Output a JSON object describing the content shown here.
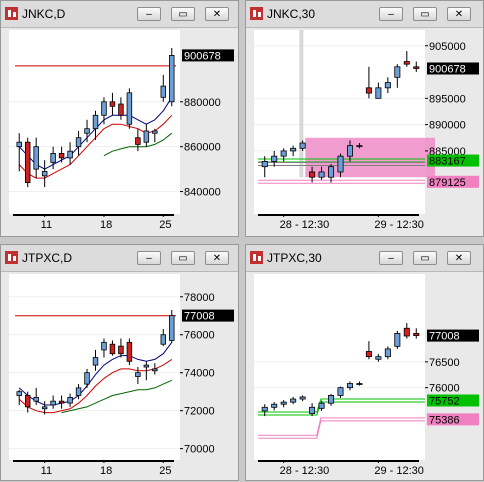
{
  "windows": [
    {
      "id": "jnkc-d",
      "title": "JNKC,D",
      "chart_data": {
        "type": "candlestick",
        "ylim": [
          830000,
          912000
        ],
        "y_ticks": [
          "900678",
          "880000",
          "860000",
          "840000"
        ],
        "y_tick_values": [
          900678,
          880000,
          860000,
          840000
        ],
        "last_price_label": "900678",
        "x_ticks": [
          "11",
          "18",
          "25"
        ],
        "x_tick_index": [
          3,
          10,
          17
        ],
        "candles": [
          {
            "o": 860000,
            "h": 866000,
            "l": 849000,
            "c": 862000
          },
          {
            "o": 862000,
            "h": 864000,
            "l": 842000,
            "c": 844000
          },
          {
            "o": 850000,
            "h": 864000,
            "l": 846000,
            "c": 860000
          },
          {
            "o": 847000,
            "h": 854000,
            "l": 842000,
            "c": 849000
          },
          {
            "o": 853000,
            "h": 860000,
            "l": 850000,
            "c": 857000
          },
          {
            "o": 857000,
            "h": 860000,
            "l": 853000,
            "c": 855000
          },
          {
            "o": 855000,
            "h": 862000,
            "l": 852000,
            "c": 858000
          },
          {
            "o": 860000,
            "h": 867000,
            "l": 856000,
            "c": 864000
          },
          {
            "o": 866000,
            "h": 872000,
            "l": 862000,
            "c": 868000
          },
          {
            "o": 868000,
            "h": 876000,
            "l": 863000,
            "c": 874000
          },
          {
            "o": 874000,
            "h": 882000,
            "l": 870000,
            "c": 880000
          },
          {
            "o": 880000,
            "h": 884000,
            "l": 874000,
            "c": 878000
          },
          {
            "o": 879000,
            "h": 882000,
            "l": 872000,
            "c": 874000
          },
          {
            "o": 870000,
            "h": 886000,
            "l": 868000,
            "c": 884000
          },
          {
            "o": 864000,
            "h": 868000,
            "l": 858000,
            "c": 861000
          },
          {
            "o": 862000,
            "h": 870000,
            "l": 860000,
            "c": 867000
          },
          {
            "o": 866000,
            "h": 868000,
            "l": 862000,
            "c": 867000
          },
          {
            "o": 882000,
            "h": 892000,
            "l": 880000,
            "c": 887000
          },
          {
            "o": 880000,
            "h": 904000,
            "l": 878000,
            "c": 900678
          }
        ],
        "series": [
          {
            "color": "#cc0000",
            "values": [
              null,
              null,
              null,
              null,
              null,
              null,
              null,
              null,
              null,
              null,
              null,
              null,
              null,
              null,
              null,
              null,
              null,
              null,
              null
            ],
            "flat": 896000
          },
          {
            "color": "#000080",
            "values": [
              860000,
              856000,
              852000,
              850000,
              852000,
              854000,
              856000,
              860000,
              864000,
              868000,
              872000,
              874000,
              874000,
              874000,
              872000,
              870000,
              872000,
              876000,
              882000
            ]
          },
          {
            "color": "#cc0000",
            "values": [
              852000,
              848000,
              846000,
              846000,
              848000,
              850000,
              852000,
              856000,
              860000,
              864000,
              868000,
              870000,
              870000,
              869000,
              868000,
              866000,
              867000,
              870000,
              874000
            ]
          },
          {
            "color": "#006400",
            "values": [
              null,
              null,
              null,
              null,
              null,
              null,
              null,
              null,
              null,
              null,
              856000,
              858000,
              859000,
              860000,
              860000,
              860000,
              861000,
              863000,
              866000
            ]
          }
        ]
      }
    },
    {
      "id": "jnkc-30",
      "title": "JNKC,30",
      "chart_data": {
        "type": "candlestick",
        "ylim": [
          873000,
          908000
        ],
        "y_ticks": [
          "905000",
          "900678",
          "895000",
          "890000",
          "885000",
          "883167",
          "879125"
        ],
        "y_tick_values": [
          905000,
          900678,
          895000,
          890000,
          885000,
          883167,
          879125
        ],
        "last_price_label": "900678",
        "level_labels": [
          {
            "text": "883167",
            "value": 883167,
            "color": "#00c000"
          },
          {
            "text": "879125",
            "value": 879125,
            "color": "#f080c0"
          }
        ],
        "x_ticks": [
          "28 - 12:30",
          "29 - 12:30"
        ],
        "x_tick_index": [
          2,
          12
        ],
        "candles": [
          {
            "o": 882000,
            "h": 884000,
            "l": 880000,
            "c": 883000
          },
          {
            "o": 883000,
            "h": 885000,
            "l": 882000,
            "c": 884000
          },
          {
            "o": 884000,
            "h": 885500,
            "l": 883000,
            "c": 885000
          },
          {
            "o": 885000,
            "h": 886000,
            "l": 884000,
            "c": 885500
          },
          {
            "o": 885500,
            "h": 887000,
            "l": 885000,
            "c": 886500
          },
          {
            "o": 881000,
            "h": 882000,
            "l": 879000,
            "c": 880000
          },
          {
            "o": 880000,
            "h": 882000,
            "l": 879500,
            "c": 881000
          },
          {
            "o": 880000,
            "h": 882500,
            "l": 879000,
            "c": 882000
          },
          {
            "o": 881000,
            "h": 884500,
            "l": 880000,
            "c": 884000
          },
          {
            "o": 884000,
            "h": 887000,
            "l": 883000,
            "c": 886000
          },
          {
            "o": 886000,
            "h": 886500,
            "l": 885500,
            "c": 886000
          },
          {
            "o": 897000,
            "h": 901000,
            "l": 895000,
            "c": 896000
          },
          {
            "o": 895000,
            "h": 898000,
            "l": 895000,
            "c": 897000
          },
          {
            "o": 897000,
            "h": 899000,
            "l": 896000,
            "c": 898000
          },
          {
            "o": 899000,
            "h": 901500,
            "l": 897000,
            "c": 901000
          },
          {
            "o": 902000,
            "h": 904000,
            "l": 901000,
            "c": 901500
          },
          {
            "o": 901000,
            "h": 902000,
            "l": 900000,
            "c": 900678
          }
        ],
        "levels": [
          {
            "color": "#00c000",
            "values": [
              883167,
              883167
            ]
          },
          {
            "color": "#f080c0",
            "values": [
              879125,
              879125
            ]
          },
          {
            "color": "#808080",
            "values": [
              882500,
              882500
            ]
          }
        ],
        "highlight_zone": {
          "from_index": 5,
          "to_index": 16,
          "low": 880000,
          "high": 887500,
          "color": "#f08cc8"
        }
      }
    },
    {
      "id": "jtpxc-d",
      "title": "JTPXC,D",
      "chart_data": {
        "type": "candlestick",
        "ylim": [
          69400,
          79200
        ],
        "y_ticks": [
          "78000",
          "77008",
          "76000",
          "74000",
          "72000",
          "70000"
        ],
        "y_tick_values": [
          78000,
          77008,
          76000,
          74000,
          72000,
          70000
        ],
        "last_price_label": "77008",
        "x_ticks": [
          "11",
          "18",
          "25"
        ],
        "x_tick_index": [
          3,
          10,
          17
        ],
        "candles": [
          {
            "o": 72800,
            "h": 73100,
            "l": 72300,
            "c": 73000
          },
          {
            "o": 72800,
            "h": 73000,
            "l": 71900,
            "c": 72200
          },
          {
            "o": 72500,
            "h": 73200,
            "l": 72300,
            "c": 72700
          },
          {
            "o": 72100,
            "h": 72500,
            "l": 71800,
            "c": 72200
          },
          {
            "o": 72300,
            "h": 72800,
            "l": 72100,
            "c": 72500
          },
          {
            "o": 72500,
            "h": 72800,
            "l": 72100,
            "c": 72400
          },
          {
            "o": 72400,
            "h": 72900,
            "l": 72200,
            "c": 72700
          },
          {
            "o": 72800,
            "h": 73400,
            "l": 72600,
            "c": 73200
          },
          {
            "o": 73400,
            "h": 74200,
            "l": 73200,
            "c": 74000
          },
          {
            "o": 74400,
            "h": 75200,
            "l": 74100,
            "c": 74800
          },
          {
            "o": 75200,
            "h": 75800,
            "l": 74800,
            "c": 75600
          },
          {
            "o": 75500,
            "h": 75700,
            "l": 74900,
            "c": 75000
          },
          {
            "o": 75400,
            "h": 75800,
            "l": 74800,
            "c": 75000
          },
          {
            "o": 75600,
            "h": 75800,
            "l": 74400,
            "c": 74600
          },
          {
            "o": 73800,
            "h": 74300,
            "l": 73400,
            "c": 74000
          },
          {
            "o": 74300,
            "h": 74600,
            "l": 73600,
            "c": 74400
          },
          {
            "o": 74100,
            "h": 74500,
            "l": 73900,
            "c": 74200
          },
          {
            "o": 75500,
            "h": 76300,
            "l": 75400,
            "c": 76000
          },
          {
            "o": 75700,
            "h": 77300,
            "l": 75600,
            "c": 77008
          }
        ],
        "series": [
          {
            "color": "#cc0000",
            "values": [
              null,
              null,
              null,
              null,
              null,
              null,
              null,
              null,
              null,
              null,
              null,
              null,
              null,
              null,
              null,
              null,
              null,
              null,
              null
            ],
            "flat": 77000
          },
          {
            "color": "#000080",
            "values": [
              73200,
              72800,
              72500,
              72300,
              72300,
              72400,
              72500,
              72800,
              73300,
              73900,
              74400,
              74700,
              74900,
              74900,
              74700,
              74600,
              74700,
              75000,
              75600
            ]
          },
          {
            "color": "#cc0000",
            "values": [
              72600,
              72200,
              72000,
              71900,
              71900,
              72000,
              72100,
              72400,
              72800,
              73300,
              73700,
              74000,
              74200,
              74200,
              74100,
              74100,
              74200,
              74400,
              74700
            ]
          },
          {
            "color": "#006400",
            "values": [
              null,
              null,
              null,
              null,
              null,
              null,
              null,
              null,
              null,
              null,
              null,
              null,
              null,
              null,
              null,
              null,
              null,
              null,
              null
            ]
          }
        ],
        "extra_series": {
          "color": "#006400",
          "from_index": 5,
          "values": [
            71900,
            72000,
            72100,
            72200,
            72400,
            72600,
            72800,
            72900,
            73000,
            73100,
            73100,
            73200,
            73400,
            73600
          ]
        }
      }
    },
    {
      "id": "jtpxc-30",
      "title": "JTPXC,30",
      "chart_data": {
        "type": "candlestick",
        "ylim": [
          74600,
          78200
        ],
        "y_ticks": [
          "77008",
          "76500",
          "76000",
          "75752",
          "75386"
        ],
        "y_tick_values": [
          77008,
          76500,
          76000,
          75752,
          75386
        ],
        "last_price_label": "77008",
        "level_labels": [
          {
            "text": "75752",
            "value": 75752,
            "color": "#00c000"
          },
          {
            "text": "75386",
            "value": 75386,
            "color": "#f080c0"
          }
        ],
        "x_ticks": [
          "28 - 12:30",
          "29 - 12:30"
        ],
        "x_tick_index": [
          2,
          12
        ],
        "candles": [
          {
            "o": 75550,
            "h": 75680,
            "l": 75450,
            "c": 75620
          },
          {
            "o": 75620,
            "h": 75720,
            "l": 75560,
            "c": 75680
          },
          {
            "o": 75680,
            "h": 75760,
            "l": 75620,
            "c": 75720
          },
          {
            "o": 75720,
            "h": 75820,
            "l": 75680,
            "c": 75780
          },
          {
            "o": 75780,
            "h": 75850,
            "l": 75740,
            "c": 75820
          },
          {
            "o": 75500,
            "h": 75700,
            "l": 75450,
            "c": 75620
          },
          {
            "o": 75600,
            "h": 75750,
            "l": 75550,
            "c": 75700
          },
          {
            "o": 75700,
            "h": 75880,
            "l": 75650,
            "c": 75850
          },
          {
            "o": 75850,
            "h": 76020,
            "l": 75800,
            "c": 76000
          },
          {
            "o": 76000,
            "h": 76120,
            "l": 75950,
            "c": 76080
          },
          {
            "o": 76080,
            "h": 76120,
            "l": 76040,
            "c": 76080
          },
          {
            "o": 76700,
            "h": 76900,
            "l": 76550,
            "c": 76600
          },
          {
            "o": 76550,
            "h": 76650,
            "l": 76500,
            "c": 76600
          },
          {
            "o": 76600,
            "h": 76800,
            "l": 76550,
            "c": 76750
          },
          {
            "o": 76800,
            "h": 77100,
            "l": 76750,
            "c": 77050
          },
          {
            "o": 77150,
            "h": 77250,
            "l": 76950,
            "c": 77000
          },
          {
            "o": 77050,
            "h": 77150,
            "l": 76950,
            "c": 77008
          }
        ],
        "levels": [
          {
            "color": "#00c000",
            "values": [
              75500,
              75752
            ],
            "step_at": 6
          },
          {
            "color": "#f080c0",
            "values": [
              75050,
              75386
            ],
            "step_at": 6
          }
        ]
      }
    }
  ],
  "buttons": {
    "minimize": "–",
    "restore": "▭",
    "close": "✕"
  },
  "colors": {
    "up_fill": "#6c9fd8",
    "down_fill": "#d02020",
    "last_price_bg": "#000000",
    "last_price_fg": "#ffffff"
  }
}
